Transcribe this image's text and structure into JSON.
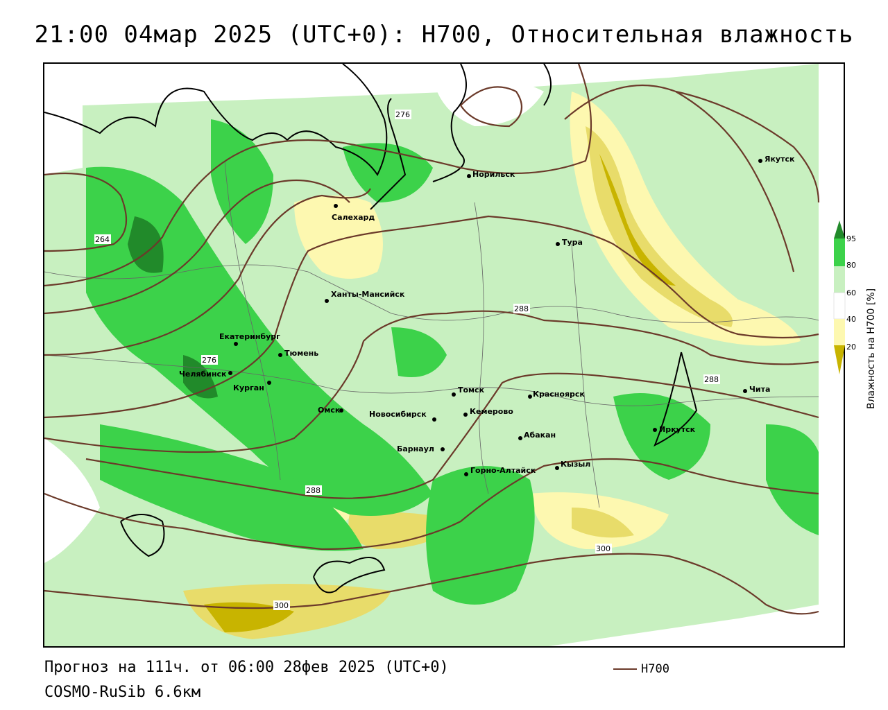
{
  "title": "21:00 04мар 2025 (UTC+0): H700, Относительная влажность",
  "footer": {
    "forecast": "Прогноз на 111ч. от 06:00 28фев 2025 (UTC+0)",
    "model": "COSMO-RuSib 6.6км",
    "legend_label": "H700"
  },
  "colorbar": {
    "title": "Влажность на H700 [%]",
    "ticks": [
      "95",
      "80",
      "60",
      "40",
      "20"
    ],
    "colors": {
      "very_dry": "#c8b400",
      "dry": "#e8dc6a",
      "moderately_dry": "#fdf8b0",
      "neutral": "#ffffff",
      "moist": "#c8f0c0",
      "wet": "#3cd24a",
      "saturated": "#218a2a"
    }
  },
  "map": {
    "contour_color": "#6b3a2a",
    "coast_color": "#000000",
    "contour_labels": [
      "276",
      "264",
      "276",
      "288",
      "288",
      "288",
      "300",
      "300"
    ],
    "cities": [
      "Норильск",
      "Якутск",
      "Салехард",
      "Тура",
      "Ханты-Мансийск",
      "Екатеринбург",
      "Тюмень",
      "Челябинск",
      "Курган",
      "Омск",
      "Новосибирск",
      "Томск",
      "Кемерово",
      "Красноярск",
      "Барнаул",
      "Абакан",
      "Горно-Алтайск",
      "Кызыл",
      "Иркутск",
      "Чита"
    ]
  }
}
